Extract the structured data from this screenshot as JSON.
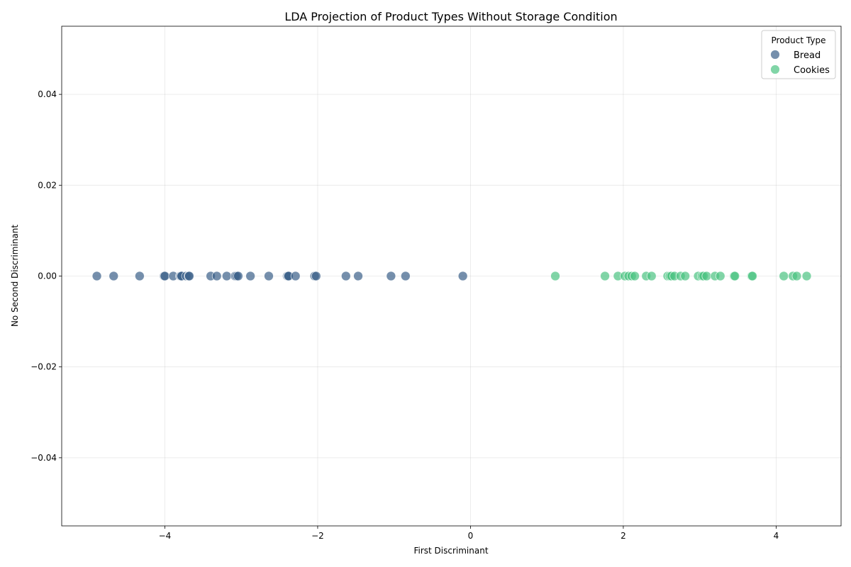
{
  "chart_data": {
    "type": "scatter",
    "title": "LDA Projection of Product Types Without Storage Condition",
    "xlabel": "First Discriminant",
    "ylabel": "No Second Discriminant",
    "xlim": [
      -5.35,
      4.85
    ],
    "ylim": [
      -0.055,
      0.055
    ],
    "xticks": [
      -4,
      -2,
      0,
      2,
      4
    ],
    "xtick_labels": [
      "−4",
      "−2",
      "0",
      "2",
      "4"
    ],
    "yticks": [
      -0.04,
      -0.02,
      0.0,
      0.02,
      0.04
    ],
    "ytick_labels": [
      "−0.04",
      "−0.02",
      "0.00",
      "0.02",
      "0.04"
    ],
    "grid": true,
    "legend": {
      "title": "Product Type",
      "placement": "top-right"
    },
    "series": [
      {
        "name": "Bread",
        "color": "#3b5f89",
        "x": [
          -4.89,
          -4.67,
          -4.33,
          -4.01,
          -4.0,
          -3.89,
          -3.8,
          -3.79,
          -3.78,
          -3.72,
          -3.69,
          -3.68,
          -3.4,
          -3.32,
          -3.19,
          -3.08,
          -3.06,
          -3.04,
          -2.88,
          -2.64,
          -2.4,
          -2.39,
          -2.38,
          -2.29,
          -2.04,
          -2.02,
          -1.63,
          -1.47,
          -1.04,
          -0.85,
          -0.1
        ],
        "y": [
          0,
          0,
          0,
          0,
          0,
          0,
          0,
          0,
          0,
          0,
          0,
          0,
          0,
          0,
          0,
          0,
          0,
          0,
          0,
          0,
          0,
          0,
          0,
          0,
          0,
          0,
          0,
          0,
          0,
          0,
          0
        ]
      },
      {
        "name": "Cookies",
        "color": "#4cc382",
        "x": [
          1.11,
          1.76,
          1.93,
          2.02,
          2.07,
          2.11,
          2.15,
          2.3,
          2.37,
          2.58,
          2.61,
          2.63,
          2.67,
          2.75,
          2.81,
          2.98,
          3.03,
          3.05,
          3.09,
          3.2,
          3.27,
          3.45,
          3.46,
          3.68,
          3.69,
          4.1,
          4.22,
          4.27,
          4.4
        ],
        "y": [
          0,
          0,
          0,
          0,
          0,
          0,
          0,
          0,
          0,
          0,
          0,
          0,
          0,
          0,
          0,
          0,
          0,
          0,
          0,
          0,
          0,
          0,
          0,
          0,
          0,
          0,
          0,
          0,
          0
        ]
      }
    ]
  }
}
